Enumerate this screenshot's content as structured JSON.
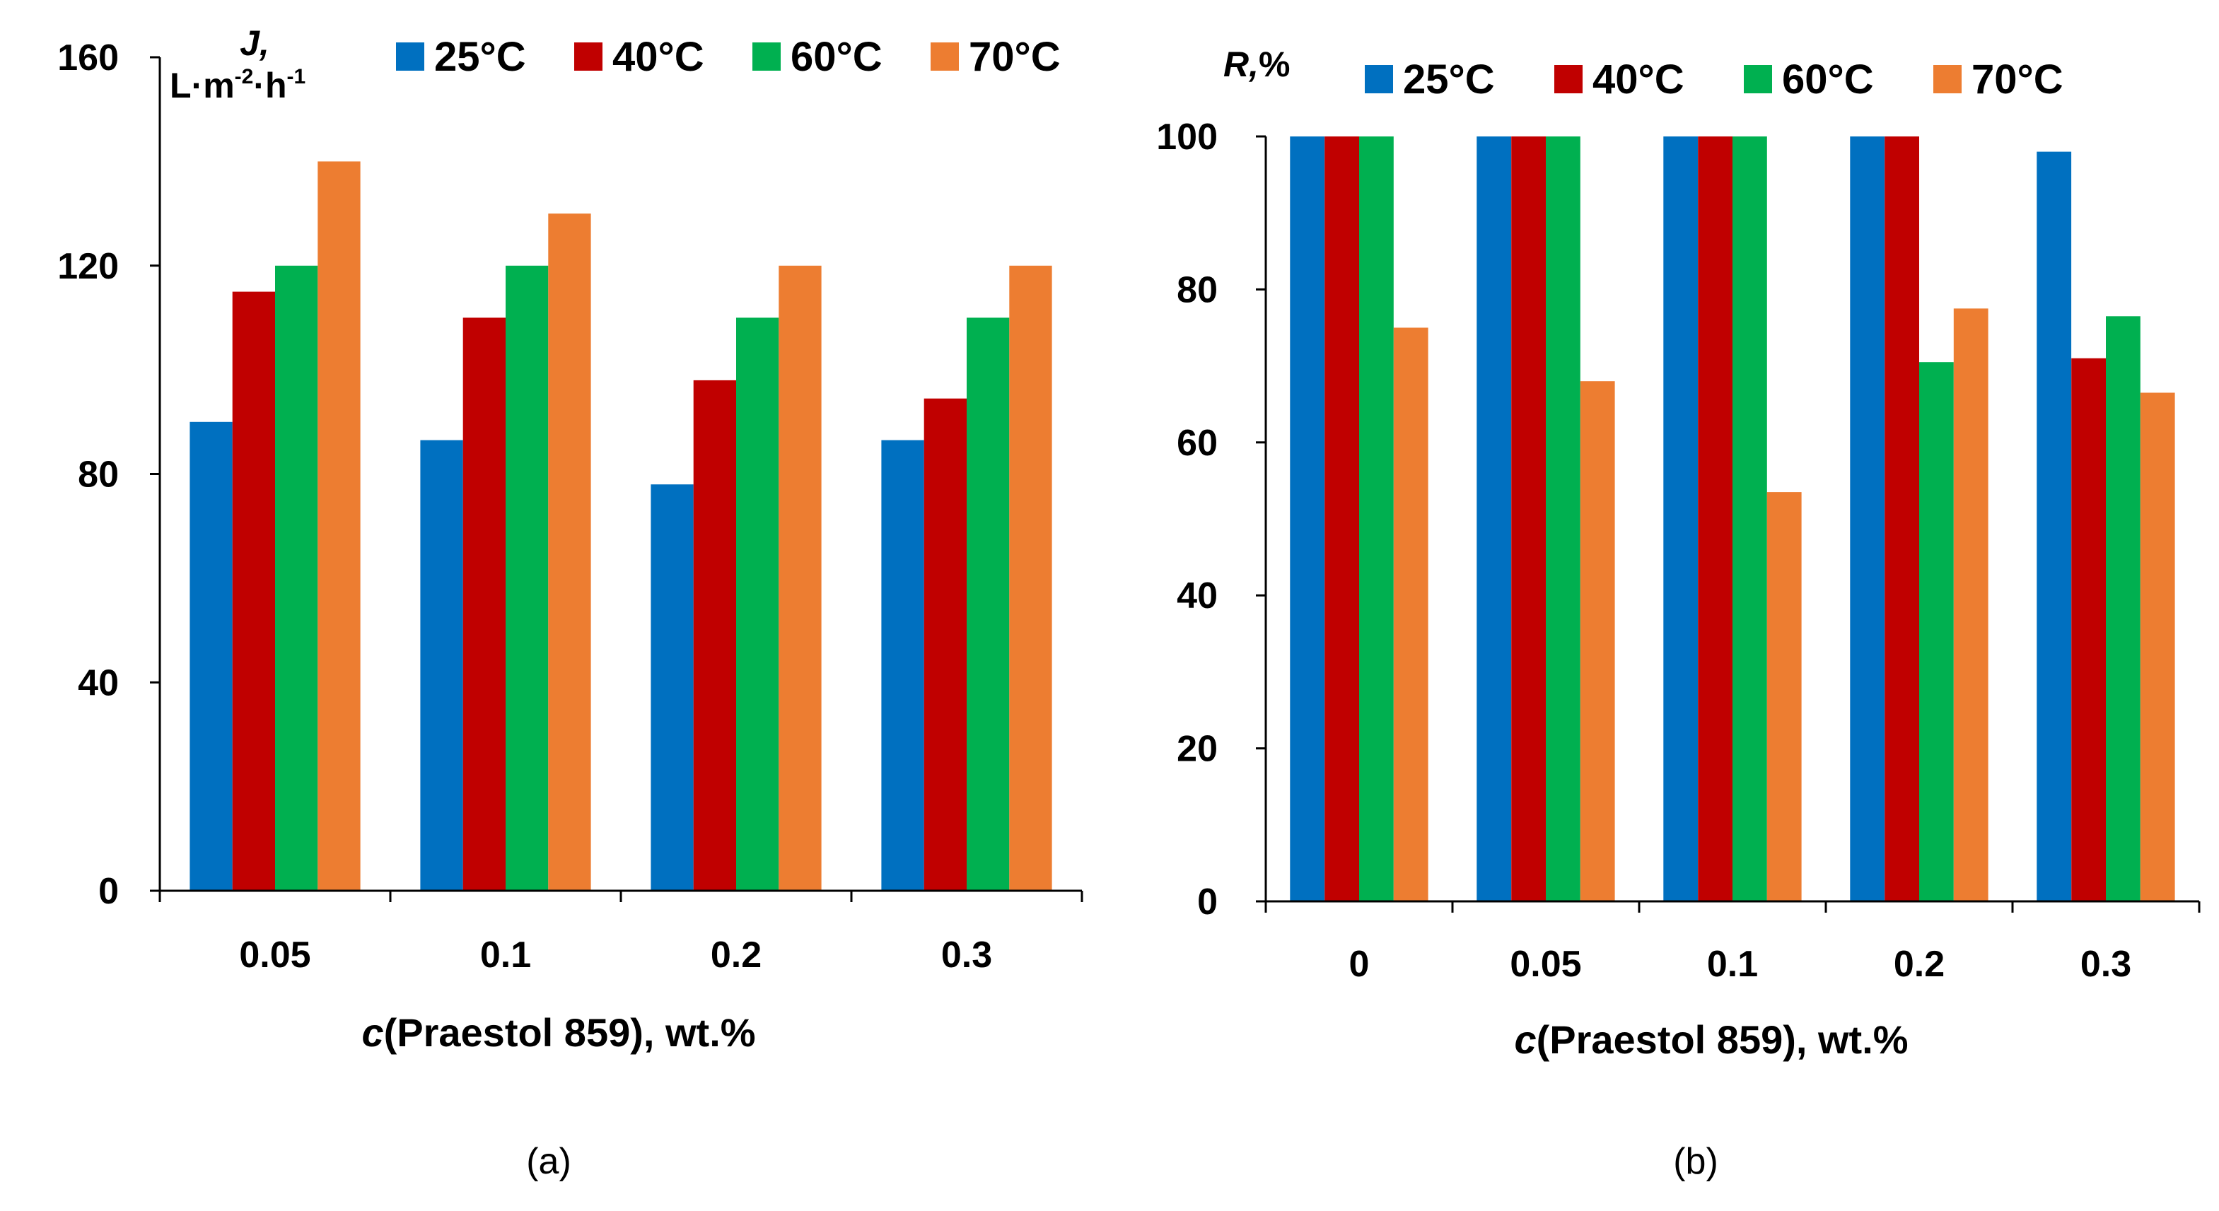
{
  "colors": {
    "c25": "#0070C0",
    "c40": "#C00000",
    "c60": "#00B050",
    "c70": "#ED7D31"
  },
  "chart_data": [
    {
      "type": "bar",
      "title": "",
      "caption": "(a)",
      "ylabel": {
        "symbol": "J,",
        "unit_prefix": "L·m",
        "exp1": "-2",
        "mid": "·h",
        "exp2": "-1"
      },
      "xlabel": {
        "var": "c",
        "rest": "(Praestol 859), wt.%"
      },
      "categories": [
        "0.05",
        "0.1",
        "0.2",
        "0.3"
      ],
      "ylim": [
        0,
        160
      ],
      "yticks": [
        "0",
        "40",
        "80",
        "120",
        "160"
      ],
      "series": [
        {
          "name": "25°C",
          "color": "#0070C0",
          "values": [
            90,
            86.5,
            78,
            86.5
          ]
        },
        {
          "name": "40°C",
          "color": "#C00000",
          "values": [
            115,
            110,
            98,
            94.5
          ]
        },
        {
          "name": "60°C",
          "color": "#00B050",
          "values": [
            120,
            120,
            110,
            110
          ]
        },
        {
          "name": "70°C",
          "color": "#ED7D31",
          "values": [
            140,
            130,
            120,
            120
          ]
        }
      ]
    },
    {
      "type": "bar",
      "title": "",
      "caption": "(b)",
      "ylabel": {
        "symbol": "R,",
        "unit": "%"
      },
      "xlabel": {
        "var": "c",
        "rest": "(Praestol 859), wt.%"
      },
      "categories": [
        "0",
        "0.05",
        "0.1",
        "0.2",
        "0.3"
      ],
      "ylim": [
        0,
        100
      ],
      "yticks": [
        "0",
        "20",
        "40",
        "60",
        "80",
        "100"
      ],
      "series": [
        {
          "name": "25°C",
          "color": "#0070C0",
          "values": [
            100,
            100,
            100,
            100,
            98
          ]
        },
        {
          "name": "40°C",
          "color": "#C00000",
          "values": [
            100,
            100,
            100,
            100,
            71
          ]
        },
        {
          "name": "60°C",
          "color": "#00B050",
          "values": [
            100,
            100,
            100,
            70.5,
            76.5
          ]
        },
        {
          "name": "70°C",
          "color": "#ED7D31",
          "values": [
            75,
            68,
            53.5,
            77.5,
            66.5
          ]
        }
      ]
    }
  ]
}
